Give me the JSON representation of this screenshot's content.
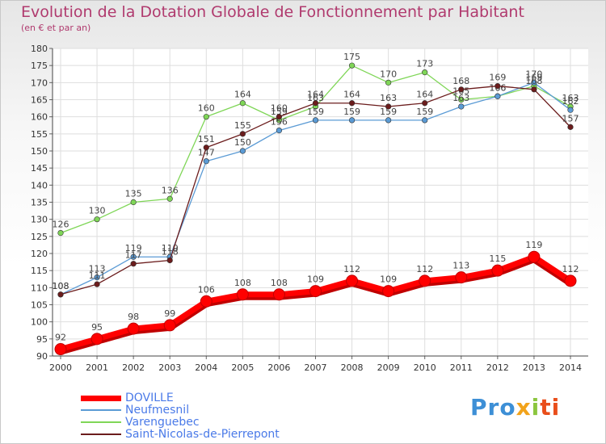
{
  "chart_data": {
    "type": "line",
    "title": "Evolution de la Dotation Globale de Fonctionnement par Habitant",
    "subtitle": "(en € et par an)",
    "x": [
      "2000",
      "2001",
      "2002",
      "2003",
      "2004",
      "2005",
      "2006",
      "2007",
      "2008",
      "2009",
      "2010",
      "2011",
      "2012",
      "2013",
      "2014"
    ],
    "ylim": [
      90,
      180
    ],
    "yticks": [
      90,
      95,
      100,
      105,
      110,
      115,
      120,
      125,
      130,
      135,
      140,
      145,
      150,
      155,
      160,
      165,
      170,
      175,
      180
    ],
    "grid": true,
    "series": [
      {
        "name": "DOVILLE",
        "color": "#ff0000",
        "values": [
          92,
          95,
          98,
          99,
          106,
          108,
          108,
          109,
          112,
          109,
          112,
          113,
          115,
          119,
          112
        ]
      },
      {
        "name": "Neufmesnil",
        "color": "#5b9bd5",
        "values": [
          108,
          113,
          119,
          119,
          147,
          150,
          156,
          159,
          159,
          159,
          159,
          163,
          166,
          170,
          162
        ]
      },
      {
        "name": "Varenguebec",
        "color": "#7fd657",
        "values": [
          126,
          130,
          135,
          136,
          160,
          164,
          159,
          163,
          175,
          170,
          173,
          165,
          166,
          169,
          163
        ]
      },
      {
        "name": "Saint-Nicolas-de-Pierrepont",
        "color": "#6b1c1c",
        "values": [
          108,
          111,
          117,
          118,
          151,
          155,
          160,
          164,
          164,
          163,
          164,
          168,
          169,
          168,
          157
        ]
      }
    ]
  },
  "brand": {
    "p1": "Pro",
    "p2": "x",
    "p3": "i",
    "p4": "ti"
  }
}
